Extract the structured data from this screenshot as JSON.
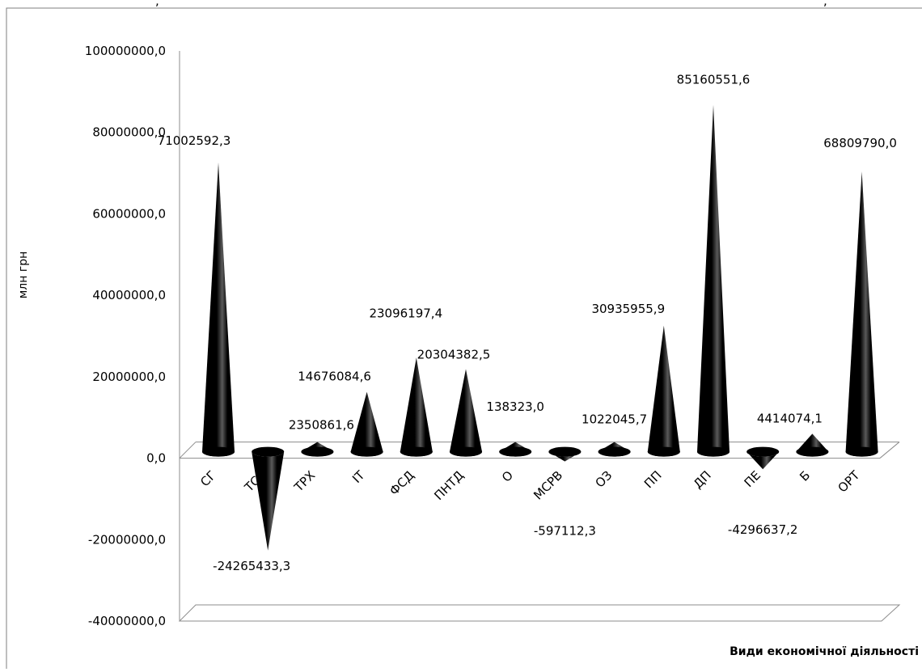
{
  "header": {
    "partial_title": ", ",
    "partial_title_right": ", "
  },
  "chart_data": {
    "type": "bar",
    "shape": "cone-3d",
    "categories": [
      "СГ",
      "ТСГ",
      "ТРХ",
      "ІТ",
      "ФСД",
      "ПНТД",
      "О",
      "МСРВ",
      "ОЗ",
      "ПП",
      "ДП",
      "ПЕ",
      "Б",
      "ОРТ"
    ],
    "values": [
      71002592.3,
      -24265433.3,
      2350861.6,
      14676084.6,
      23096197.4,
      20304382.5,
      138323.0,
      -597112.3,
      1022045.7,
      30935955.9,
      85160551.6,
      -4296637.2,
      4414074.1,
      68809790.0
    ],
    "data_labels": [
      "71002592,3",
      "-24265433,3",
      "2350861,6",
      "14676084,6",
      "23096197,4",
      "20304382,5",
      "138323,0",
      "-597112,3",
      "1022045,7",
      "30935955,9",
      "85160551,6",
      "-4296637,2",
      "4414074,1",
      "68809790,0"
    ],
    "ylabel": "млн грн",
    "xlabel": "Види  економічної діяльності",
    "ylim": [
      -40000000,
      100000000
    ],
    "yticks": [
      {
        "value": 100000000,
        "label": "100000000,0"
      },
      {
        "value": 80000000,
        "label": "80000000,0"
      },
      {
        "value": 60000000,
        "label": "60000000,0"
      },
      {
        "value": 40000000,
        "label": "40000000,0"
      },
      {
        "value": 20000000,
        "label": "20000000,0"
      },
      {
        "value": 0,
        "label": "0,0"
      },
      {
        "value": -20000000,
        "label": "-20000000,0"
      },
      {
        "value": -40000000,
        "label": "-40000000,0"
      }
    ],
    "grid": false,
    "legend": "none",
    "colors": {
      "cone": "#000000",
      "highlight": "#5a5a5a",
      "axis": "#8c8c8c",
      "frame": "#7f7f7f"
    }
  }
}
